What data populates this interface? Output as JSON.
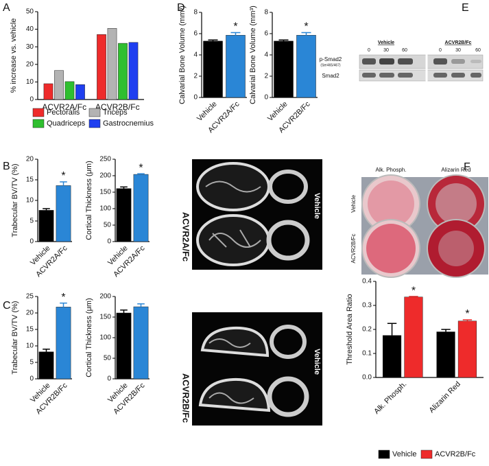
{
  "panel_labels": [
    "A",
    "B",
    "C",
    "D",
    "E",
    "F"
  ],
  "chart_data": [
    {
      "type": "bar",
      "y_label": "% increase vs. vehicle",
      "categories": [
        "ACVR2A/Fc",
        "ACVR2B/Fc"
      ],
      "series": [
        {
          "name": "Pectoralis",
          "color": "#ee2b2b",
          "values": [
            9,
            37
          ]
        },
        {
          "name": "Triceps",
          "color": "#b3b3b3",
          "values": [
            16.5,
            40.5
          ]
        },
        {
          "name": "Quadriceps",
          "color": "#2fbf2f",
          "values": [
            10.2,
            32
          ]
        },
        {
          "name": "Gastrocnemius",
          "color": "#1f3ff0",
          "values": [
            8.5,
            32.5
          ]
        }
      ],
      "ylim": [
        0,
        50
      ],
      "yticks": [
        0,
        10,
        20,
        30,
        40,
        50
      ],
      "legend": "bottom"
    },
    {
      "type": "bar",
      "y_label": "Trabecular BV/TV (%)",
      "categories": [
        "Vehicle",
        "ACVR2A/Fc"
      ],
      "values": [
        7.6,
        13.6
      ],
      "errors": [
        0.4,
        0.9
      ],
      "significance": [
        null,
        "*"
      ],
      "colors": [
        "#000000",
        "#2a86d6"
      ],
      "ylim": [
        0,
        20
      ],
      "yticks": [
        0,
        5,
        10,
        15,
        20
      ]
    },
    {
      "type": "bar",
      "y_label": "Cortical Thickness (μm)",
      "categories": [
        "Vehicle",
        "ACVR2A/Fc"
      ],
      "values": [
        161,
        204
      ],
      "errors": [
        5,
        2
      ],
      "significance": [
        null,
        "*"
      ],
      "colors": [
        "#000000",
        "#2a86d6"
      ],
      "ylim": [
        0,
        250
      ],
      "yticks": [
        0,
        50,
        100,
        150,
        200,
        250
      ]
    },
    {
      "type": "bar",
      "y_label": "Trabecular BV/TV (%)",
      "categories": [
        "Vehicle",
        "ACVR2B/Fc"
      ],
      "values": [
        8.2,
        21.8
      ],
      "errors": [
        0.8,
        1.2
      ],
      "significance": [
        null,
        "*"
      ],
      "colors": [
        "#000000",
        "#2a86d6"
      ],
      "ylim": [
        0,
        25
      ],
      "yticks": [
        0,
        5,
        10,
        15,
        20,
        25
      ]
    },
    {
      "type": "bar",
      "y_label": "Cortical Thickness (μm)",
      "categories": [
        "Vehicle",
        "ACVR2B/Fc"
      ],
      "values": [
        160,
        175
      ],
      "errors": [
        7,
        7
      ],
      "colors": [
        "#000000",
        "#2a86d6"
      ],
      "ylim": [
        0,
        200
      ],
      "yticks": [
        0,
        50,
        100,
        150,
        200
      ]
    },
    {
      "type": "bar",
      "y_label": "Calvarial Bone Volume (mm³)",
      "categories": [
        "Vehicle",
        "ACVR2A/Fc"
      ],
      "values": [
        5.3,
        5.85
      ],
      "errors": [
        0.1,
        0.25
      ],
      "significance": [
        null,
        "*"
      ],
      "colors": [
        "#000000",
        "#2a86d6"
      ],
      "ylim": [
        0,
        8
      ],
      "yticks": [
        0,
        2,
        4,
        6,
        8
      ]
    },
    {
      "type": "bar",
      "y_label": "Calvarial Bone Volume (mm³)",
      "categories": [
        "Vehicle",
        "ACVR2B/Fc"
      ],
      "values": [
        5.3,
        5.85
      ],
      "errors": [
        0.1,
        0.25
      ],
      "significance": [
        null,
        "*"
      ],
      "colors": [
        "#000000",
        "#2a86d6"
      ],
      "ylim": [
        0,
        8
      ],
      "yticks": [
        0,
        2,
        4,
        6,
        8
      ]
    },
    {
      "type": "bar",
      "y_label": "Threshold Area Ratio",
      "categories": [
        "Alk. Phosph.",
        "Alizarin Red"
      ],
      "series": [
        {
          "name": "Vehicle",
          "color": "#000000",
          "values": [
            0.175,
            0.19
          ],
          "errors": [
            0.05,
            0.01
          ]
        },
        {
          "name": "ACVR2B/Fc",
          "color": "#ee2b2b",
          "values": [
            0.335,
            0.235
          ],
          "errors": [
            0.002,
            0.005
          ],
          "significance": [
            "*",
            "*"
          ]
        }
      ],
      "ylim": [
        0,
        0.4
      ],
      "yticks": [
        {
          "value": 0,
          "label": "0.0"
        },
        0.1,
        0.2,
        0.3,
        0.4
      ],
      "legend": "bottom"
    }
  ],
  "microct": [
    {
      "row_labels": [
        "Vehicle",
        "ACVR2A/Fc"
      ]
    },
    {
      "row_labels": [
        "Vehicle",
        "ACVR2B/Fc"
      ]
    }
  ],
  "western_blot": {
    "groups": [
      "Vehicle",
      "ACVR2B/Fc"
    ],
    "time_points": [
      "0",
      "30",
      "60",
      "0",
      "30",
      "60"
    ],
    "rows": [
      "p-Smad2",
      "Smad2"
    ],
    "phospho_site": "(Ser465/467)"
  },
  "staining": {
    "columns": [
      "Alk. Phosph.",
      "Alizarin Red"
    ],
    "rows": [
      "Vehicle",
      "ACVR2B/Fc"
    ]
  }
}
